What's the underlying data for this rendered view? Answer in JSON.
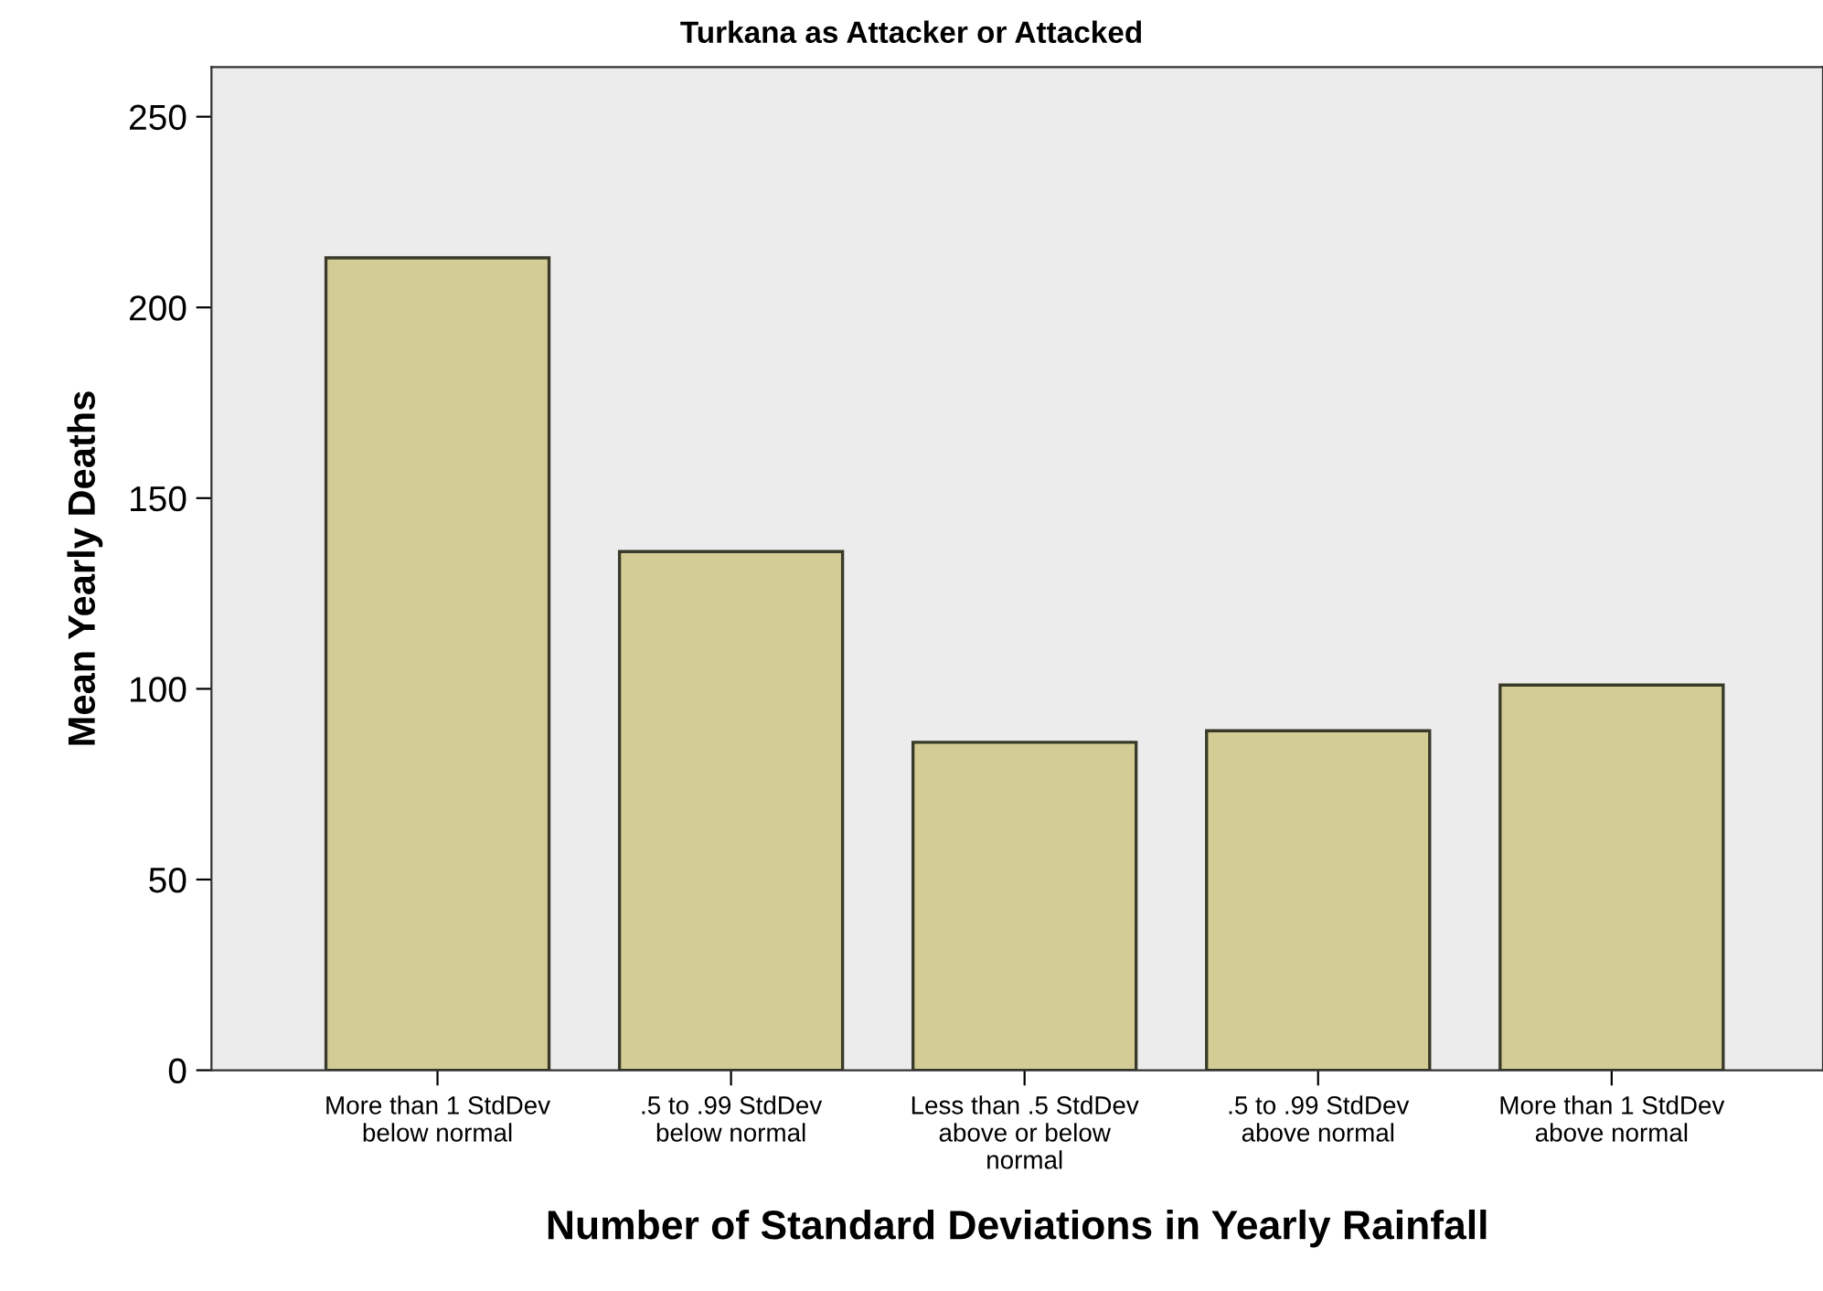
{
  "chart_data": {
    "type": "bar",
    "title": "Turkana as Attacker or Attacked",
    "xlabel": "Number of Standard Deviations in Yearly Rainfall",
    "ylabel": "Mean Yearly Deaths",
    "categories": [
      "More than 1 StdDev\nbelow normal",
      ".5 to .99 StdDev\nbelow normal",
      "Less than .5 StdDev\nabove or below\nnormal",
      ".5 to .99 StdDev\nabove normal",
      "More than 1 StdDev\nabove normal"
    ],
    "values": [
      213,
      136,
      86,
      89,
      101
    ],
    "color": "#d3cc95",
    "ylim": [
      0,
      263
    ],
    "yticks": [
      0,
      50,
      100,
      150,
      200,
      250
    ],
    "grid": false,
    "legend": false
  }
}
